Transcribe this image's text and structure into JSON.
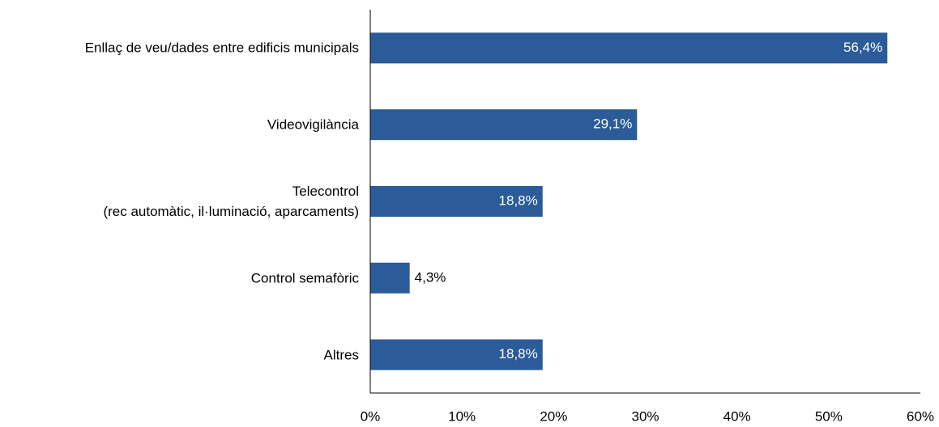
{
  "chart_data": {
    "type": "hbar",
    "categories": [
      "Enllaç de veu/dades entre edificis municipals",
      "Videovigilància",
      "Telecontrol\n(rec automàtic, il·luminació, aparcaments)",
      "Control semafòric",
      "Altres"
    ],
    "values": [
      56.4,
      29.1,
      18.8,
      4.3,
      18.8
    ],
    "value_labels": [
      "56,4%",
      "29,1%",
      "18,8%",
      "4,3%",
      "18,8%"
    ],
    "color": "#2b5c99",
    "xlim": [
      0,
      60
    ],
    "xticks": [
      {
        "value": 0,
        "label": "0%"
      },
      {
        "value": 10,
        "label": "10%"
      },
      {
        "value": 20,
        "label": "20%"
      },
      {
        "value": 30,
        "label": "30%"
      },
      {
        "value": 40,
        "label": "40%"
      },
      {
        "value": 50,
        "label": "50%"
      },
      {
        "value": 60,
        "label": "60%"
      }
    ]
  }
}
